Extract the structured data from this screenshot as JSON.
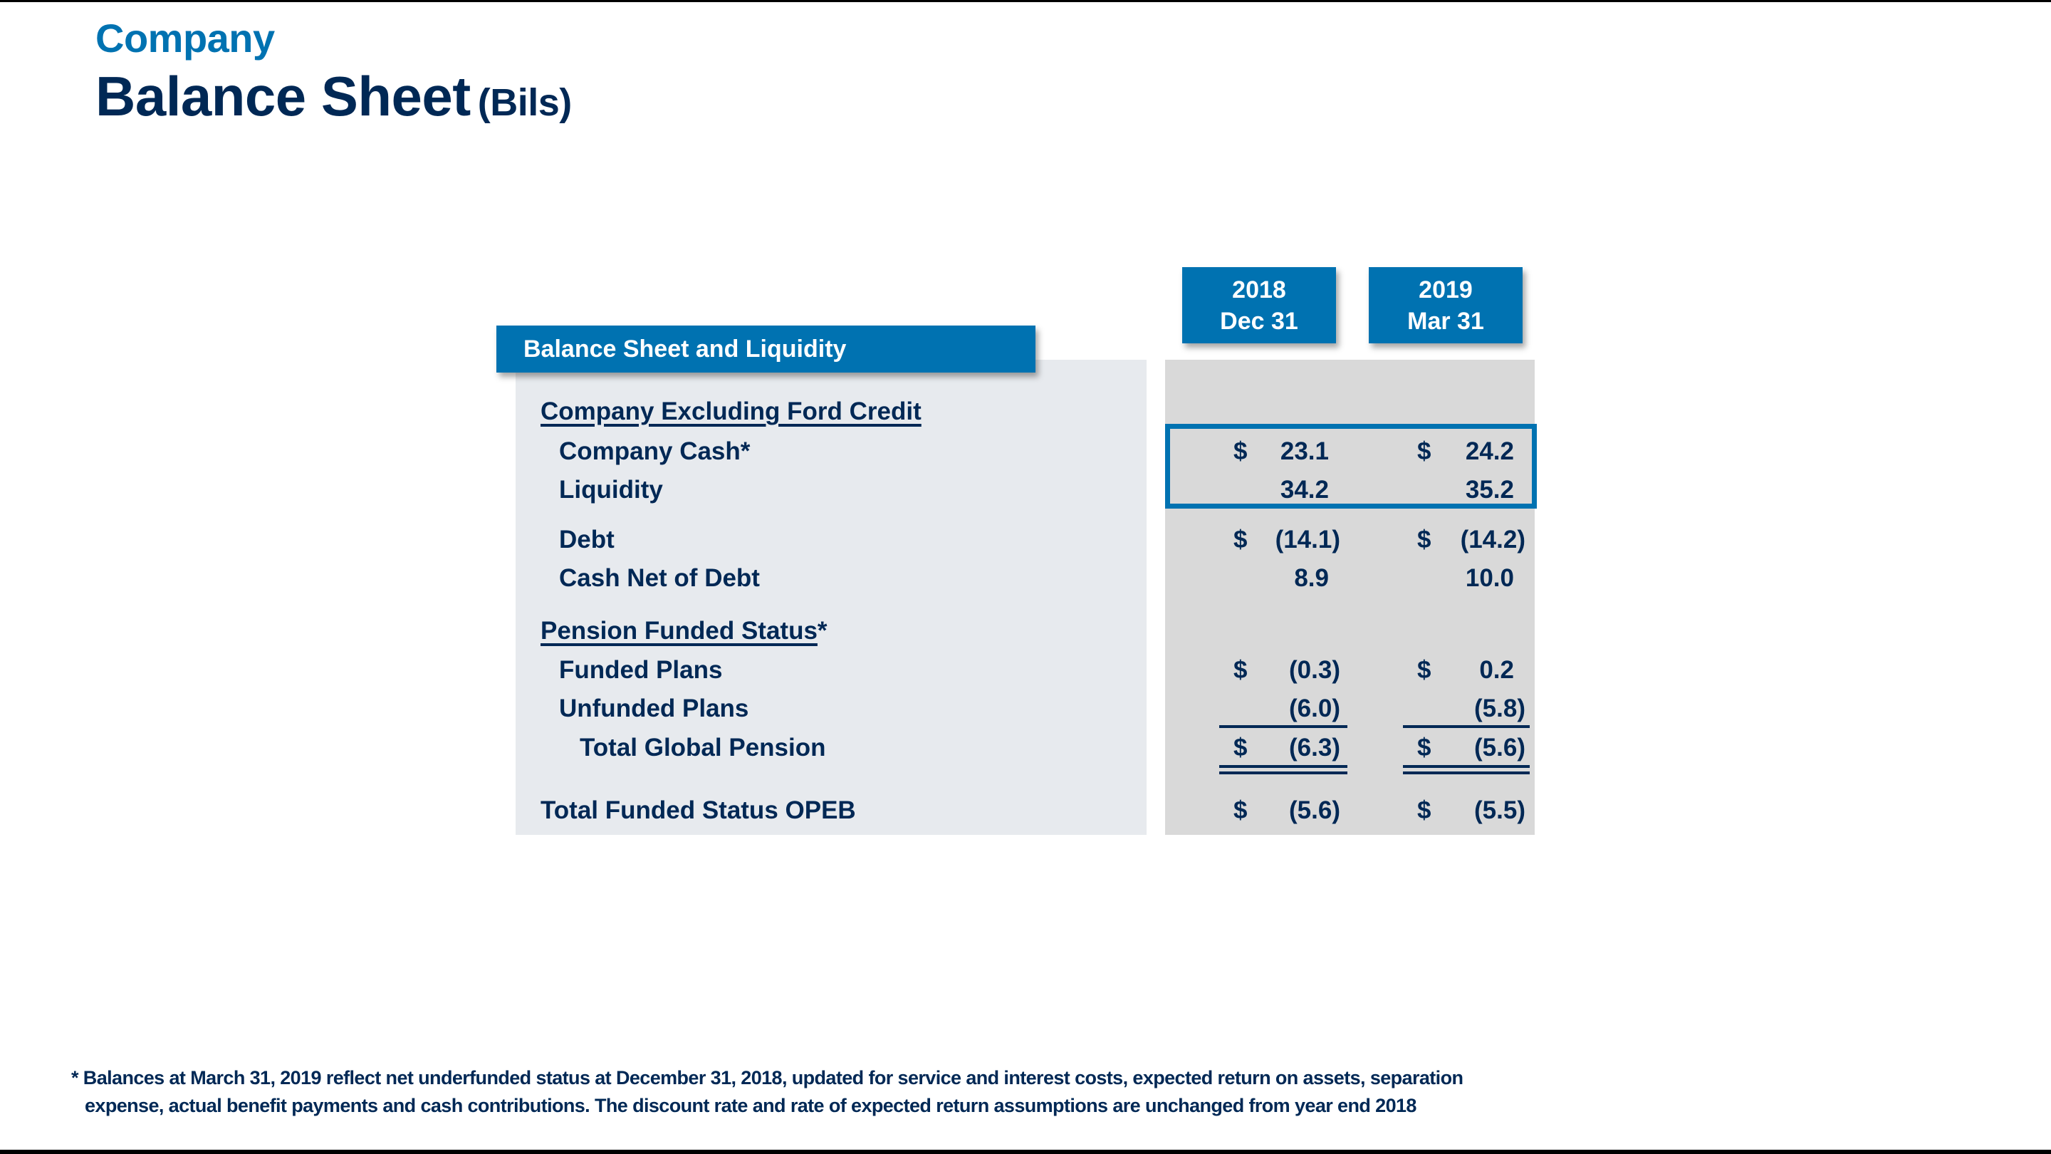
{
  "title": {
    "kicker": "Company",
    "main": "Balance Sheet",
    "unit": "(Bils)"
  },
  "section_label": "Balance Sheet and Liquidity",
  "columns": [
    {
      "year": "2018",
      "date": "Dec 31"
    },
    {
      "year": "2019",
      "date": "Mar 31"
    }
  ],
  "rows": [
    {
      "label": "Company Excluding Ford Credit",
      "type": "heading",
      "underline_text": "Company Excluding Ford Credit",
      "suffix": ""
    },
    {
      "label": "Company Cash*",
      "c1_dollar": "$",
      "c1": "23.1",
      "c2_dollar": "$",
      "c2": "24.2"
    },
    {
      "label": "Liquidity",
      "c1_dollar": "",
      "c1": "34.2",
      "c2_dollar": "",
      "c2": "35.2"
    },
    {
      "label": "Debt",
      "c1_dollar": "$",
      "c1": "(14.1)",
      "c2_dollar": "$",
      "c2": "(14.2)"
    },
    {
      "label": "Cash Net of Debt",
      "c1_dollar": "",
      "c1": "8.9",
      "c2_dollar": "",
      "c2": "10.0"
    },
    {
      "label": "Pension Funded Status*",
      "type": "heading",
      "underline_text": "Pension Funded Status",
      "suffix": "*"
    },
    {
      "label": "Funded Plans",
      "c1_dollar": "$",
      "c1": "(0.3)",
      "c2_dollar": "$",
      "c2": "0.2"
    },
    {
      "label": "Unfunded Plans",
      "c1_dollar": "",
      "c1": "(6.0)",
      "c2_dollar": "",
      "c2": "(5.8)"
    },
    {
      "label": "Total Global Pension",
      "c1_dollar": "$",
      "c1": "(6.3)",
      "c2_dollar": "$",
      "c2": "(5.6)"
    },
    {
      "label": "Total Funded Status OPEB",
      "c1_dollar": "$",
      "c1": "(5.6)",
      "c2_dollar": "$",
      "c2": "(5.5)"
    }
  ],
  "footnote": {
    "line1": "* Balances at March 31, 2019 reflect net underfunded status at December 31, 2018, updated for service and interest costs, expected return on assets, separation",
    "line2": "expense, actual benefit payments and cash contributions.  The discount rate and rate of expected return assumptions are unchanged from year end 2018"
  },
  "colors": {
    "brand_blue": "#0072B1",
    "navy_text": "#002855",
    "label_panel": "#E7EAEE",
    "value_panel": "#D9D9D9"
  }
}
